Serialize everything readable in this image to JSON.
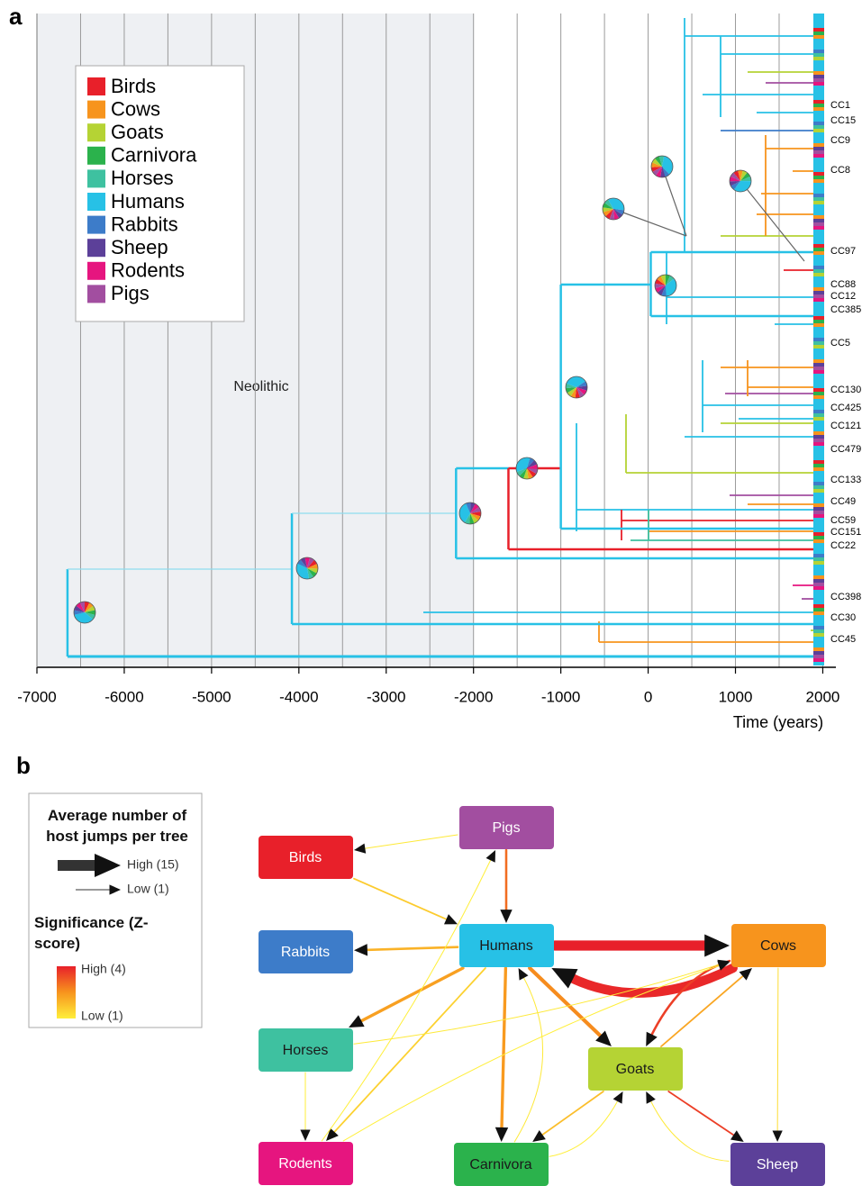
{
  "chart_data": [
    {
      "type": "tree",
      "panel_label": "a",
      "xlabel": "Time (years)",
      "annotation": "Neolithic",
      "shaded_period": [
        -7000,
        -2000
      ],
      "xlim": [
        -7000,
        2150
      ],
      "xticks": [
        -7000,
        -6000,
        -5000,
        -4000,
        -3000,
        -2000,
        -1000,
        0,
        1000,
        2000
      ],
      "minor_xticks": [
        -6500,
        -5500,
        -4500,
        -3500,
        -2500,
        -1500,
        -500,
        500,
        1500
      ],
      "hosts": [
        {
          "name": "Birds",
          "color": "#e8202a"
        },
        {
          "name": "Cows",
          "color": "#f7941d"
        },
        {
          "name": "Goats",
          "color": "#b5d334"
        },
        {
          "name": "Carnivora",
          "color": "#2bb24c"
        },
        {
          "name": "Horses",
          "color": "#3ec1a0"
        },
        {
          "name": "Humans",
          "color": "#27c1e6"
        },
        {
          "name": "Rabbits",
          "color": "#3d7cc9"
        },
        {
          "name": "Sheep",
          "color": "#5c4099"
        },
        {
          "name": "Rodents",
          "color": "#e6157f"
        },
        {
          "name": "Pigs",
          "color": "#a24ea0"
        }
      ],
      "backbone": [
        {
          "time": -6650,
          "host": 5
        },
        {
          "time": -4080,
          "host": 5
        },
        {
          "time": -2200,
          "host": 5
        },
        {
          "time": -1600,
          "host": 0
        },
        {
          "time": -1000,
          "host": 5
        },
        {
          "time": 30,
          "host": 5
        }
      ],
      "tip_labels": [
        "CC1",
        "CC15",
        "CC9",
        "CC8",
        "CC97",
        "CC88",
        "CC12",
        "CC385",
        "CC5",
        "CC130",
        "CC425",
        "CC121",
        "CC479",
        "CC133",
        "CC49",
        "CC59",
        "CC151",
        "CC22",
        "CC398",
        "CC30",
        "CC45"
      ]
    },
    {
      "type": "network",
      "panel_label": "b",
      "legend": {
        "width_title": "Average number of host jumps per tree",
        "width_high": "High (15)",
        "width_low": "Low (1)",
        "color_title": "Significance (Z-score)",
        "color_high": "High (4)",
        "color_low": "Low (1)",
        "width_range": [
          1,
          15
        ],
        "z_range": [
          1,
          4
        ],
        "z_colors": [
          "#ffef3a",
          "#f7941d",
          "#e8202a"
        ]
      },
      "nodes": [
        {
          "name": "Pigs",
          "color": "#a24ea0",
          "text_color": "#ffffff"
        },
        {
          "name": "Birds",
          "color": "#e8202a",
          "text_color": "#ffffff"
        },
        {
          "name": "Rabbits",
          "color": "#3d7cc9",
          "text_color": "#ffffff"
        },
        {
          "name": "Humans",
          "color": "#27c1e6",
          "text_color": "#1a1a1a"
        },
        {
          "name": "Cows",
          "color": "#f7941d",
          "text_color": "#1a1a1a"
        },
        {
          "name": "Horses",
          "color": "#3ec1a0",
          "text_color": "#1a1a1a"
        },
        {
          "name": "Goats",
          "color": "#b5d334",
          "text_color": "#1a1a1a"
        },
        {
          "name": "Rodents",
          "color": "#e6157f",
          "text_color": "#ffffff"
        },
        {
          "name": "Carnivora",
          "color": "#2bb24c",
          "text_color": "#1a1a1a"
        },
        {
          "name": "Sheep",
          "color": "#5c4099",
          "text_color": "#ffffff"
        }
      ],
      "edges": [
        {
          "from": "Humans",
          "to": "Cows",
          "jumps": 14,
          "z": 4.0
        },
        {
          "from": "Cows",
          "to": "Humans",
          "jumps": 13,
          "z": 3.9
        },
        {
          "from": "Humans",
          "to": "Goats",
          "jumps": 5,
          "z": 2.6
        },
        {
          "from": "Cows",
          "to": "Goats",
          "jumps": 3,
          "z": 3.6
        },
        {
          "from": "Goats",
          "to": "Cows",
          "jumps": 2,
          "z": 2.2
        },
        {
          "from": "Pigs",
          "to": "Humans",
          "jumps": 3,
          "z": 3.0
        },
        {
          "from": "Pigs",
          "to": "Birds",
          "jumps": 1,
          "z": 1.1
        },
        {
          "from": "Birds",
          "to": "Humans",
          "jumps": 2,
          "z": 1.6
        },
        {
          "from": "Humans",
          "to": "Rabbits",
          "jumps": 3,
          "z": 2.0
        },
        {
          "from": "Humans",
          "to": "Horses",
          "jumps": 4,
          "z": 2.3
        },
        {
          "from": "Humans",
          "to": "Carnivora",
          "jumps": 4,
          "z": 2.4
        },
        {
          "from": "Carnivora",
          "to": "Humans",
          "jumps": 1,
          "z": 1.1
        },
        {
          "from": "Humans",
          "to": "Rodents",
          "jumps": 2,
          "z": 1.5
        },
        {
          "from": "Horses",
          "to": "Cows",
          "jumps": 1,
          "z": 1.1
        },
        {
          "from": "Goats",
          "to": "Sheep",
          "jumps": 2,
          "z": 3.6
        },
        {
          "from": "Sheep",
          "to": "Goats",
          "jumps": 1,
          "z": 1.1
        },
        {
          "from": "Cows",
          "to": "Sheep",
          "jumps": 1,
          "z": 1.3
        },
        {
          "from": "Goats",
          "to": "Carnivora",
          "jumps": 2,
          "z": 1.8
        },
        {
          "from": "Rodents",
          "to": "Pigs",
          "jumps": 1,
          "z": 1.0
        },
        {
          "from": "Horses",
          "to": "Rodents",
          "jumps": 1,
          "z": 1.0
        },
        {
          "from": "Carnivora",
          "to": "Goats",
          "jumps": 1,
          "z": 1.0
        },
        {
          "from": "Rodents",
          "to": "Cows",
          "jumps": 1,
          "z": 1.0
        }
      ]
    }
  ]
}
